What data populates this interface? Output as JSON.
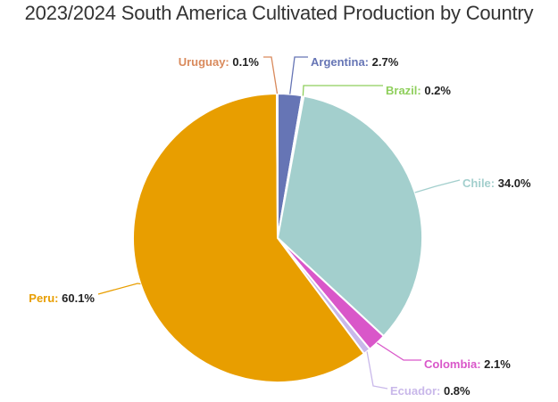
{
  "chart_data": {
    "type": "pie",
    "title": "2023/2024 South America Cultivated Production by Country",
    "slices": [
      {
        "name": "Argentina",
        "value": 2.7,
        "label": "2.7%",
        "color": "#6675b5"
      },
      {
        "name": "Brazil",
        "value": 0.2,
        "label": "0.2%",
        "color": "#8fcf5c"
      },
      {
        "name": "Chile",
        "value": 34.0,
        "label": "34.0%",
        "color": "#a3cfcd"
      },
      {
        "name": "Colombia",
        "value": 2.1,
        "label": "2.1%",
        "color": "#d957c9"
      },
      {
        "name": "Ecuador",
        "value": 0.8,
        "label": "0.8%",
        "color": "#c9b8ea"
      },
      {
        "name": "Peru",
        "value": 60.1,
        "label": "60.1%",
        "color": "#e89e00"
      },
      {
        "name": "Uruguay",
        "value": 0.1,
        "label": "0.1%",
        "color": "#d98a5c"
      }
    ],
    "start_angle_deg": 0,
    "direction": "clockwise",
    "legend": "none"
  }
}
